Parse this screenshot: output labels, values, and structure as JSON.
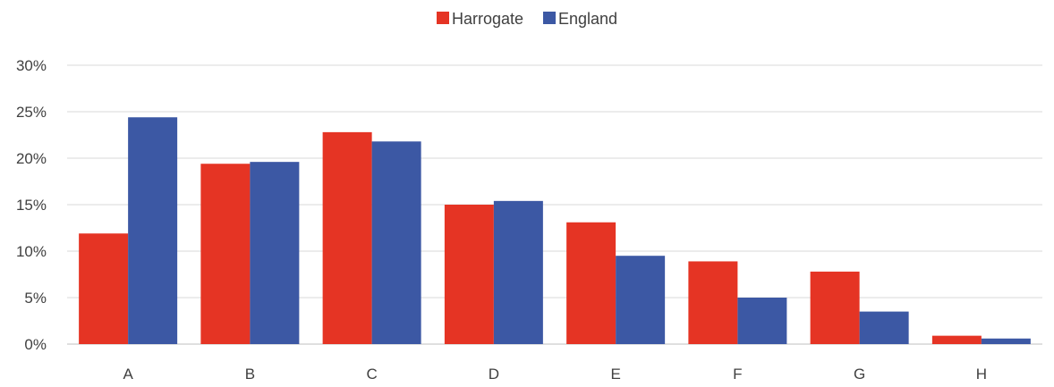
{
  "chart_data": {
    "type": "bar",
    "categories": [
      "A",
      "B",
      "C",
      "D",
      "E",
      "F",
      "G",
      "H"
    ],
    "series": [
      {
        "name": "Harrogate",
        "color": "#E53424",
        "values": [
          11.9,
          19.4,
          22.8,
          15.0,
          13.1,
          8.9,
          7.8,
          0.9
        ]
      },
      {
        "name": "England",
        "color": "#3C58A4",
        "values": [
          24.4,
          19.6,
          21.8,
          15.4,
          9.5,
          5.0,
          3.5,
          0.6
        ]
      }
    ],
    "yticks": [
      "0%",
      "5%",
      "10%",
      "15%",
      "20%",
      "25%",
      "30%"
    ],
    "ytick_values": [
      0,
      5,
      10,
      15,
      20,
      25,
      30
    ],
    "ylim": [
      0,
      30
    ],
    "grid": true,
    "legend": "top-center",
    "gridline_color": "#D9D9D9"
  }
}
